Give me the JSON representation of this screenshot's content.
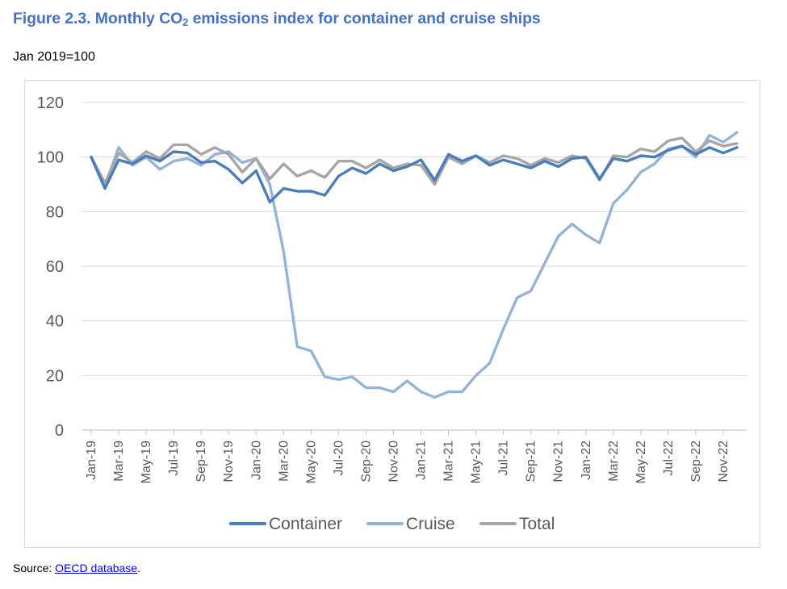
{
  "figure": {
    "title_prefix": "Figure 2.3. Monthly CO",
    "title_sub": "2",
    "title_suffix": " emissions index for container and cruise ships",
    "subtitle": "Jan 2019=100"
  },
  "source": {
    "label": "Source: ",
    "link_text": "OECD database",
    "trailing": "."
  },
  "colors": {
    "Container": "#4a7ebb",
    "Cruise": "#95b3d7",
    "Total": "#a6a6a6",
    "grid": "#d9d9d9",
    "axis_text": "#595959"
  },
  "chart_data": {
    "type": "line",
    "title": "",
    "xlabel": "",
    "ylabel": "",
    "ylim": [
      0,
      120
    ],
    "yticks": [
      0,
      20,
      40,
      60,
      80,
      100,
      120
    ],
    "grid": true,
    "legend_position": "bottom",
    "x": [
      "Jan-19",
      "Feb-19",
      "Mar-19",
      "Apr-19",
      "May-19",
      "Jun-19",
      "Jul-19",
      "Aug-19",
      "Sep-19",
      "Oct-19",
      "Nov-19",
      "Dec-19",
      "Jan-20",
      "Feb-20",
      "Mar-20",
      "Apr-20",
      "May-20",
      "Jun-20",
      "Jul-20",
      "Aug-20",
      "Sep-20",
      "Oct-20",
      "Nov-20",
      "Dec-20",
      "Jan-21",
      "Feb-21",
      "Mar-21",
      "Apr-21",
      "May-21",
      "Jun-21",
      "Jul-21",
      "Aug-21",
      "Sep-21",
      "Oct-21",
      "Nov-21",
      "Dec-21",
      "Jan-22",
      "Feb-22",
      "Mar-22",
      "Apr-22",
      "May-22",
      "Jun-22",
      "Jul-22",
      "Aug-22",
      "Sep-22",
      "Oct-22",
      "Nov-22",
      "Dec-22"
    ],
    "tick_labels": [
      "Jan-19",
      "Mar-19",
      "May-19",
      "Jul-19",
      "Sep-19",
      "Nov-19",
      "Jan-20",
      "Mar-20",
      "May-20",
      "Jul-20",
      "Sep-20",
      "Nov-20",
      "Jan-21",
      "Mar-21",
      "May-21",
      "Jul-21",
      "Sep-21",
      "Nov-21",
      "Jan-22",
      "Mar-22",
      "May-22",
      "Jul-22",
      "Sep-22",
      "Nov-22"
    ],
    "series": [
      {
        "name": "Container",
        "values": [
          100,
          88.5,
          99,
          97.5,
          100.5,
          98.5,
          102,
          101.5,
          98,
          98.5,
          95.5,
          90.5,
          95,
          83.5,
          88.5,
          87.5,
          87.5,
          86,
          93,
          96,
          94,
          97.5,
          95,
          96.5,
          99,
          91.5,
          101,
          98.5,
          100.5,
          97,
          99,
          97.5,
          96,
          98.5,
          96.5,
          99.5,
          100,
          92,
          99.5,
          98.5,
          100.5,
          100,
          102.5,
          104,
          101,
          103.5,
          101.5,
          103.5
        ]
      },
      {
        "name": "Cruise",
        "values": [
          100,
          89.5,
          103.5,
          97,
          100,
          95.5,
          98.5,
          99.5,
          97,
          101,
          102,
          98,
          99.5,
          90,
          65.5,
          30.5,
          29,
          19.5,
          18.5,
          19.5,
          15.5,
          15.5,
          14,
          18,
          14,
          12,
          14,
          14,
          20,
          24.5,
          37,
          48.5,
          51,
          61,
          71,
          75.5,
          71.5,
          68.5,
          83,
          88,
          94.5,
          97.5,
          103,
          104,
          100,
          108,
          105.5,
          109
        ]
      },
      {
        "name": "Total",
        "values": [
          100,
          90.5,
          101.5,
          98,
          102,
          99.5,
          104.5,
          104.5,
          101,
          103.5,
          101,
          94.5,
          99.5,
          92,
          97.5,
          93,
          95,
          92.5,
          98.5,
          98.5,
          96,
          99,
          96,
          97.5,
          97,
          90,
          100,
          97.5,
          100.5,
          98,
          100.5,
          99.5,
          97,
          99.5,
          98,
          100.5,
          99.5,
          91.5,
          100.5,
          100,
          103,
          102,
          106,
          107,
          102,
          106,
          104,
          105
        ]
      }
    ]
  }
}
